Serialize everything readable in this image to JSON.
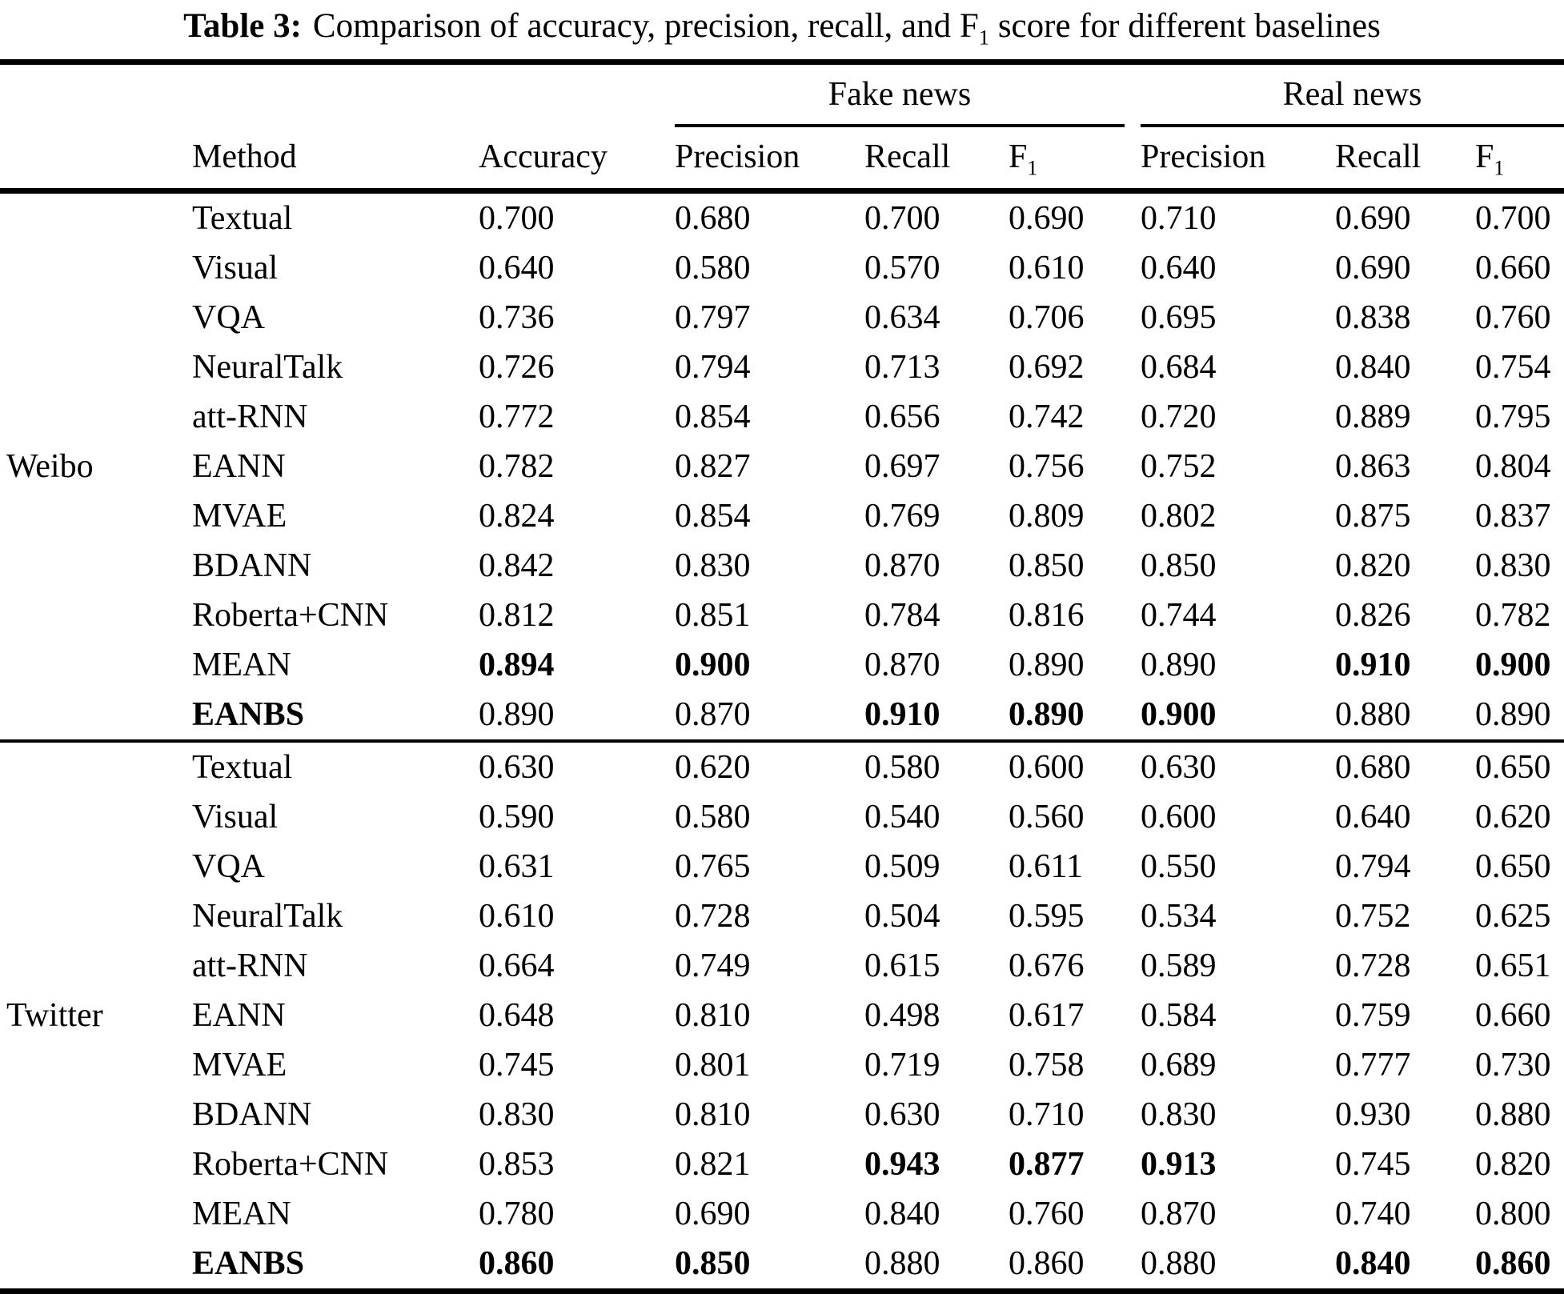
{
  "caption": {
    "label": "Table 3:",
    "text_pre": "Comparison of accuracy, precision, recall, and F",
    "f1_sub": "1",
    "text_post": " score for different baselines"
  },
  "table": {
    "group_headers": [
      {
        "label": "Fake news"
      },
      {
        "label": "Real news"
      }
    ],
    "columns": [
      {
        "label": "Method"
      },
      {
        "label": "Accuracy"
      },
      {
        "label": "Precision"
      },
      {
        "label": "Recall"
      },
      {
        "label": "F",
        "sub": "1"
      },
      {
        "label": "Precision"
      },
      {
        "label": "Recall"
      },
      {
        "label": "F",
        "sub": "1"
      }
    ],
    "sections": [
      {
        "dataset": "Weibo",
        "rows": [
          {
            "method": "Textual",
            "method_bold": false,
            "cells": [
              {
                "v": "0.700",
                "b": false
              },
              {
                "v": "0.680",
                "b": false
              },
              {
                "v": "0.700",
                "b": false
              },
              {
                "v": "0.690",
                "b": false
              },
              {
                "v": "0.710",
                "b": false
              },
              {
                "v": "0.690",
                "b": false
              },
              {
                "v": "0.700",
                "b": false
              }
            ]
          },
          {
            "method": "Visual",
            "method_bold": false,
            "cells": [
              {
                "v": "0.640",
                "b": false
              },
              {
                "v": "0.580",
                "b": false
              },
              {
                "v": "0.570",
                "b": false
              },
              {
                "v": "0.610",
                "b": false
              },
              {
                "v": "0.640",
                "b": false
              },
              {
                "v": "0.690",
                "b": false
              },
              {
                "v": "0.660",
                "b": false
              }
            ]
          },
          {
            "method": "VQA",
            "method_bold": false,
            "cells": [
              {
                "v": "0.736",
                "b": false
              },
              {
                "v": "0.797",
                "b": false
              },
              {
                "v": "0.634",
                "b": false
              },
              {
                "v": "0.706",
                "b": false
              },
              {
                "v": "0.695",
                "b": false
              },
              {
                "v": "0.838",
                "b": false
              },
              {
                "v": "0.760",
                "b": false
              }
            ]
          },
          {
            "method": "NeuralTalk",
            "method_bold": false,
            "cells": [
              {
                "v": "0.726",
                "b": false
              },
              {
                "v": "0.794",
                "b": false
              },
              {
                "v": "0.713",
                "b": false
              },
              {
                "v": "0.692",
                "b": false
              },
              {
                "v": "0.684",
                "b": false
              },
              {
                "v": "0.840",
                "b": false
              },
              {
                "v": "0.754",
                "b": false
              }
            ]
          },
          {
            "method": "att-RNN",
            "method_bold": false,
            "cells": [
              {
                "v": "0.772",
                "b": false
              },
              {
                "v": "0.854",
                "b": false
              },
              {
                "v": "0.656",
                "b": false
              },
              {
                "v": "0.742",
                "b": false
              },
              {
                "v": "0.720",
                "b": false
              },
              {
                "v": "0.889",
                "b": false
              },
              {
                "v": "0.795",
                "b": false
              }
            ]
          },
          {
            "method": "EANN",
            "method_bold": false,
            "cells": [
              {
                "v": "0.782",
                "b": false
              },
              {
                "v": "0.827",
                "b": false
              },
              {
                "v": "0.697",
                "b": false
              },
              {
                "v": "0.756",
                "b": false
              },
              {
                "v": "0.752",
                "b": false
              },
              {
                "v": "0.863",
                "b": false
              },
              {
                "v": "0.804",
                "b": false
              }
            ]
          },
          {
            "method": "MVAE",
            "method_bold": false,
            "cells": [
              {
                "v": "0.824",
                "b": false
              },
              {
                "v": "0.854",
                "b": false
              },
              {
                "v": "0.769",
                "b": false
              },
              {
                "v": "0.809",
                "b": false
              },
              {
                "v": "0.802",
                "b": false
              },
              {
                "v": "0.875",
                "b": false
              },
              {
                "v": "0.837",
                "b": false
              }
            ]
          },
          {
            "method": "BDANN",
            "method_bold": false,
            "cells": [
              {
                "v": "0.842",
                "b": false
              },
              {
                "v": "0.830",
                "b": false
              },
              {
                "v": "0.870",
                "b": false
              },
              {
                "v": "0.850",
                "b": false
              },
              {
                "v": "0.850",
                "b": false
              },
              {
                "v": "0.820",
                "b": false
              },
              {
                "v": "0.830",
                "b": false
              }
            ]
          },
          {
            "method": "Roberta+CNN",
            "method_bold": false,
            "cells": [
              {
                "v": "0.812",
                "b": false
              },
              {
                "v": "0.851",
                "b": false
              },
              {
                "v": "0.784",
                "b": false
              },
              {
                "v": "0.816",
                "b": false
              },
              {
                "v": "0.744",
                "b": false
              },
              {
                "v": "0.826",
                "b": false
              },
              {
                "v": "0.782",
                "b": false
              }
            ]
          },
          {
            "method": "MEAN",
            "method_bold": false,
            "cells": [
              {
                "v": "0.894",
                "b": true
              },
              {
                "v": "0.900",
                "b": true
              },
              {
                "v": "0.870",
                "b": false
              },
              {
                "v": "0.890",
                "b": false
              },
              {
                "v": "0.890",
                "b": false
              },
              {
                "v": "0.910",
                "b": true
              },
              {
                "v": "0.900",
                "b": true
              }
            ]
          },
          {
            "method": "EANBS",
            "method_bold": true,
            "cells": [
              {
                "v": "0.890",
                "b": false
              },
              {
                "v": "0.870",
                "b": false
              },
              {
                "v": "0.910",
                "b": true
              },
              {
                "v": "0.890",
                "b": true
              },
              {
                "v": "0.900",
                "b": true
              },
              {
                "v": "0.880",
                "b": false
              },
              {
                "v": "0.890",
                "b": false
              }
            ]
          }
        ]
      },
      {
        "dataset": "Twitter",
        "rows": [
          {
            "method": "Textual",
            "method_bold": false,
            "cells": [
              {
                "v": "0.630",
                "b": false
              },
              {
                "v": "0.620",
                "b": false
              },
              {
                "v": "0.580",
                "b": false
              },
              {
                "v": "0.600",
                "b": false
              },
              {
                "v": "0.630",
                "b": false
              },
              {
                "v": "0.680",
                "b": false
              },
              {
                "v": "0.650",
                "b": false
              }
            ]
          },
          {
            "method": "Visual",
            "method_bold": false,
            "cells": [
              {
                "v": "0.590",
                "b": false
              },
              {
                "v": "0.580",
                "b": false
              },
              {
                "v": "0.540",
                "b": false
              },
              {
                "v": "0.560",
                "b": false
              },
              {
                "v": "0.600",
                "b": false
              },
              {
                "v": "0.640",
                "b": false
              },
              {
                "v": "0.620",
                "b": false
              }
            ]
          },
          {
            "method": "VQA",
            "method_bold": false,
            "cells": [
              {
                "v": "0.631",
                "b": false
              },
              {
                "v": "0.765",
                "b": false
              },
              {
                "v": "0.509",
                "b": false
              },
              {
                "v": "0.611",
                "b": false
              },
              {
                "v": "0.550",
                "b": false
              },
              {
                "v": "0.794",
                "b": false
              },
              {
                "v": "0.650",
                "b": false
              }
            ]
          },
          {
            "method": "NeuralTalk",
            "method_bold": false,
            "cells": [
              {
                "v": "0.610",
                "b": false
              },
              {
                "v": "0.728",
                "b": false
              },
              {
                "v": "0.504",
                "b": false
              },
              {
                "v": "0.595",
                "b": false
              },
              {
                "v": "0.534",
                "b": false
              },
              {
                "v": "0.752",
                "b": false
              },
              {
                "v": "0.625",
                "b": false
              }
            ]
          },
          {
            "method": "att-RNN",
            "method_bold": false,
            "cells": [
              {
                "v": "0.664",
                "b": false
              },
              {
                "v": "0.749",
                "b": false
              },
              {
                "v": "0.615",
                "b": false
              },
              {
                "v": "0.676",
                "b": false
              },
              {
                "v": "0.589",
                "b": false
              },
              {
                "v": "0.728",
                "b": false
              },
              {
                "v": "0.651",
                "b": false
              }
            ]
          },
          {
            "method": "EANN",
            "method_bold": false,
            "cells": [
              {
                "v": "0.648",
                "b": false
              },
              {
                "v": "0.810",
                "b": false
              },
              {
                "v": "0.498",
                "b": false
              },
              {
                "v": "0.617",
                "b": false
              },
              {
                "v": "0.584",
                "b": false
              },
              {
                "v": "0.759",
                "b": false
              },
              {
                "v": "0.660",
                "b": false
              }
            ]
          },
          {
            "method": "MVAE",
            "method_bold": false,
            "cells": [
              {
                "v": "0.745",
                "b": false
              },
              {
                "v": "0.801",
                "b": false
              },
              {
                "v": "0.719",
                "b": false
              },
              {
                "v": "0.758",
                "b": false
              },
              {
                "v": "0.689",
                "b": false
              },
              {
                "v": "0.777",
                "b": false
              },
              {
                "v": "0.730",
                "b": false
              }
            ]
          },
          {
            "method": "BDANN",
            "method_bold": false,
            "cells": [
              {
                "v": "0.830",
                "b": false
              },
              {
                "v": "0.810",
                "b": false
              },
              {
                "v": "0.630",
                "b": false
              },
              {
                "v": "0.710",
                "b": false
              },
              {
                "v": "0.830",
                "b": false
              },
              {
                "v": "0.930",
                "b": false
              },
              {
                "v": "0.880",
                "b": false
              }
            ]
          },
          {
            "method": "Roberta+CNN",
            "method_bold": false,
            "cells": [
              {
                "v": "0.853",
                "b": false
              },
              {
                "v": "0.821",
                "b": false
              },
              {
                "v": "0.943",
                "b": true
              },
              {
                "v": "0.877",
                "b": true
              },
              {
                "v": "0.913",
                "b": true
              },
              {
                "v": "0.745",
                "b": false
              },
              {
                "v": "0.820",
                "b": false
              }
            ]
          },
          {
            "method": "MEAN",
            "method_bold": false,
            "cells": [
              {
                "v": "0.780",
                "b": false
              },
              {
                "v": "0.690",
                "b": false
              },
              {
                "v": "0.840",
                "b": false
              },
              {
                "v": "0.760",
                "b": false
              },
              {
                "v": "0.870",
                "b": false
              },
              {
                "v": "0.740",
                "b": false
              },
              {
                "v": "0.800",
                "b": false
              }
            ]
          },
          {
            "method": "EANBS",
            "method_bold": true,
            "cells": [
              {
                "v": "0.860",
                "b": true
              },
              {
                "v": "0.850",
                "b": true
              },
              {
                "v": "0.880",
                "b": false
              },
              {
                "v": "0.860",
                "b": false
              },
              {
                "v": "0.880",
                "b": false
              },
              {
                "v": "0.840",
                "b": true
              },
              {
                "v": "0.860",
                "b": true
              }
            ]
          }
        ]
      }
    ]
  }
}
